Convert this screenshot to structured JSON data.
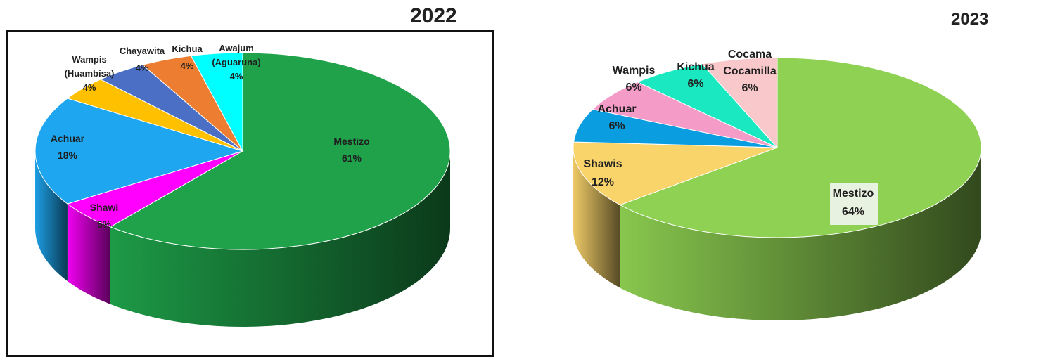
{
  "chart_data": [
    {
      "type": "pie",
      "title": "2022",
      "style": "3d-exploded",
      "slices": [
        {
          "name": "Mestizo",
          "value": 61,
          "label": "61%",
          "color": "#1fa24a"
        },
        {
          "name": "Shawi",
          "value": 5,
          "label": "5%",
          "color": "#ff00ff"
        },
        {
          "name": "Achuar",
          "value": 18,
          "label": "18%",
          "color": "#1ea7f0"
        },
        {
          "name": "Wampis (Huambisa)",
          "value": 4,
          "label": "4%",
          "color": "#ffc000"
        },
        {
          "name": "Chayawita",
          "value": 4,
          "label": "4%",
          "color": "#4a6fc4"
        },
        {
          "name": "Kichua",
          "value": 4,
          "label": "4%",
          "color": "#ed7d31"
        },
        {
          "name": "Awajum (Aguaruna)",
          "value": 4,
          "label": "4%",
          "color": "#00ffff"
        }
      ]
    },
    {
      "type": "pie",
      "title": "2023",
      "style": "3d",
      "slices": [
        {
          "name": "Mestizo",
          "value": 64,
          "label": "64%",
          "color": "#8fd152"
        },
        {
          "name": "Shawis",
          "value": 12,
          "label": "12%",
          "color": "#f9d46b"
        },
        {
          "name": "Achuar",
          "value": 6,
          "label": "6%",
          "color": "#0a9de0"
        },
        {
          "name": "Wampis",
          "value": 6,
          "label": "6%",
          "color": "#f59bc8"
        },
        {
          "name": "Kichua",
          "value": 6,
          "label": "6%",
          "color": "#19e8c0"
        },
        {
          "name": "Cocama Cocamilla",
          "value": 6,
          "label": "6%",
          "color": "#f8c8cb"
        }
      ]
    }
  ]
}
